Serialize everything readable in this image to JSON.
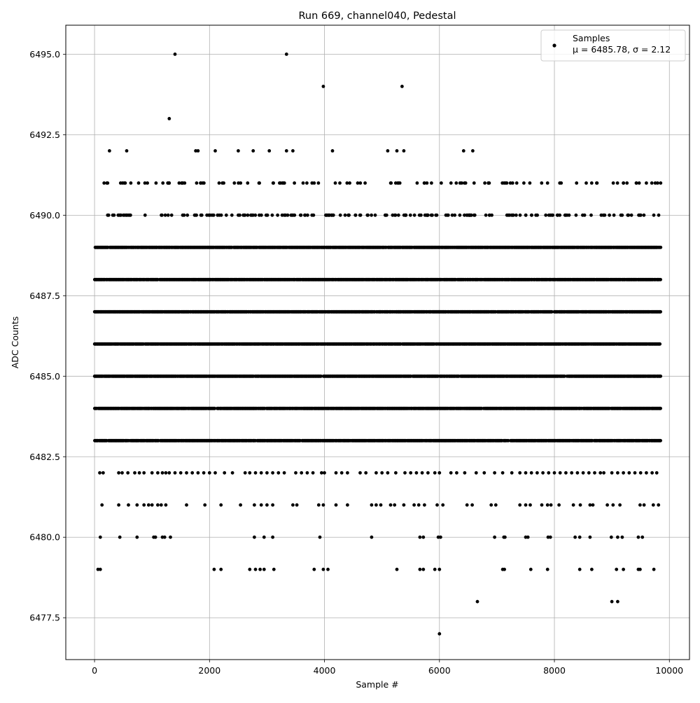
{
  "chart_data": {
    "type": "scatter",
    "title": "Run 669, channel040, Pedestal",
    "xlabel": "Sample #",
    "ylabel": "ADC Counts",
    "xlim": [
      -500,
      10350
    ],
    "ylim": [
      6476.2,
      6495.9
    ],
    "xticks": [
      0,
      2000,
      4000,
      6000,
      8000,
      10000
    ],
    "xtick_labels": [
      "0",
      "2000",
      "4000",
      "6000",
      "8000",
      "10000"
    ],
    "yticks": [
      6477.5,
      6480.0,
      6482.5,
      6485.0,
      6487.5,
      6490.0,
      6492.5,
      6495.0
    ],
    "ytick_labels": [
      "6477.5",
      "6480.0",
      "6482.5",
      "6485.0",
      "6487.5",
      "6490.0",
      "6492.5",
      "6495.0"
    ],
    "grid": true,
    "legend": {
      "placement": "top-right",
      "entry": "Samples",
      "stats": "μ = 6485.78, σ = 2.12"
    },
    "marker_color": "#000000",
    "n_samples": 9850,
    "levels": [
      {
        "y": 6477,
        "x": [
          6000
        ]
      },
      {
        "y": 6478,
        "x": [
          6660,
          9000,
          9100
        ]
      },
      {
        "y": 6479,
        "x": [
          60,
          100,
          2080,
          2200,
          2700,
          2800,
          2880,
          2950,
          3120,
          3820,
          3980,
          4060,
          5260,
          5660,
          5720,
          5920,
          6000,
          7100,
          7130,
          7590,
          7880,
          8440,
          8650,
          9080,
          9200,
          9460,
          9490,
          9730
        ]
      },
      {
        "y": 6480,
        "x": [
          100,
          440,
          740,
          1030,
          1060,
          1180,
          1220,
          1320,
          2780,
          2950,
          3100,
          3920,
          4820,
          5660,
          5720,
          5980,
          6020,
          6960,
          7120,
          7140,
          7500,
          7540,
          7890,
          7930,
          8360,
          8440,
          8620,
          8990,
          9100,
          9180,
          9460,
          9530
        ]
      },
      {
        "y": 6481,
        "x": [
          130,
          420,
          590,
          740,
          860,
          940,
          1000,
          1100,
          1160,
          1240,
          1600,
          1920,
          2200,
          2540,
          2780,
          2900,
          3000,
          3100,
          3450,
          3520,
          3900,
          3980,
          4200,
          4400,
          4820,
          4900,
          4980,
          5150,
          5220,
          5380,
          5560,
          5640,
          5740,
          5960,
          6060,
          6480,
          6570,
          6900,
          6980,
          7400,
          7500,
          7580,
          7780,
          7880,
          7940,
          8080,
          8330,
          8450,
          8620,
          8670,
          8920,
          9020,
          9140,
          9490,
          9560,
          9720,
          9810
        ]
      },
      {
        "y": 6482,
        "x": [
          90,
          150,
          420,
          480,
          580,
          700,
          780,
          860,
          1000,
          1100,
          1180,
          1240,
          1300,
          1400,
          1500,
          1600,
          1700,
          1800,
          1900,
          2000,
          2100,
          2260,
          2400,
          2620,
          2700,
          2800,
          2900,
          3000,
          3100,
          3200,
          3300,
          3500,
          3600,
          3700,
          3800,
          3950,
          4000,
          4200,
          4300,
          4400,
          4620,
          4720,
          4900,
          5000,
          5100,
          5240,
          5400,
          5500,
          5600,
          5700,
          5800,
          5920,
          6000,
          6200,
          6300,
          6440,
          6640,
          6780,
          6960,
          7100,
          7260,
          7400,
          7500,
          7600,
          7700,
          7800,
          7900,
          8000,
          8100,
          8200,
          8300,
          8400,
          8500,
          8600,
          8700,
          8800,
          8860,
          9000,
          9100,
          9200,
          9300,
          9400,
          9500,
          9600,
          9700,
          9780
        ]
      },
      {
        "y": 6492,
        "x": [
          260,
          560,
          1760,
          1800,
          2100,
          2500,
          2760,
          3040,
          3340,
          3450,
          4140,
          5100,
          5260,
          5380,
          6420,
          6580
        ]
      },
      {
        "y": 6493,
        "x": [
          1300
        ]
      },
      {
        "y": 6494,
        "x": [
          3980,
          5350
        ]
      },
      {
        "y": 6495,
        "x": [
          1400,
          3340
        ]
      }
    ],
    "dense_levels": [
      6483,
      6484,
      6485,
      6486,
      6487,
      6488,
      6489
    ],
    "sparse_bands": [
      {
        "y": 6490,
        "count": 190
      },
      {
        "y": 6491,
        "count": 110
      }
    ]
  }
}
